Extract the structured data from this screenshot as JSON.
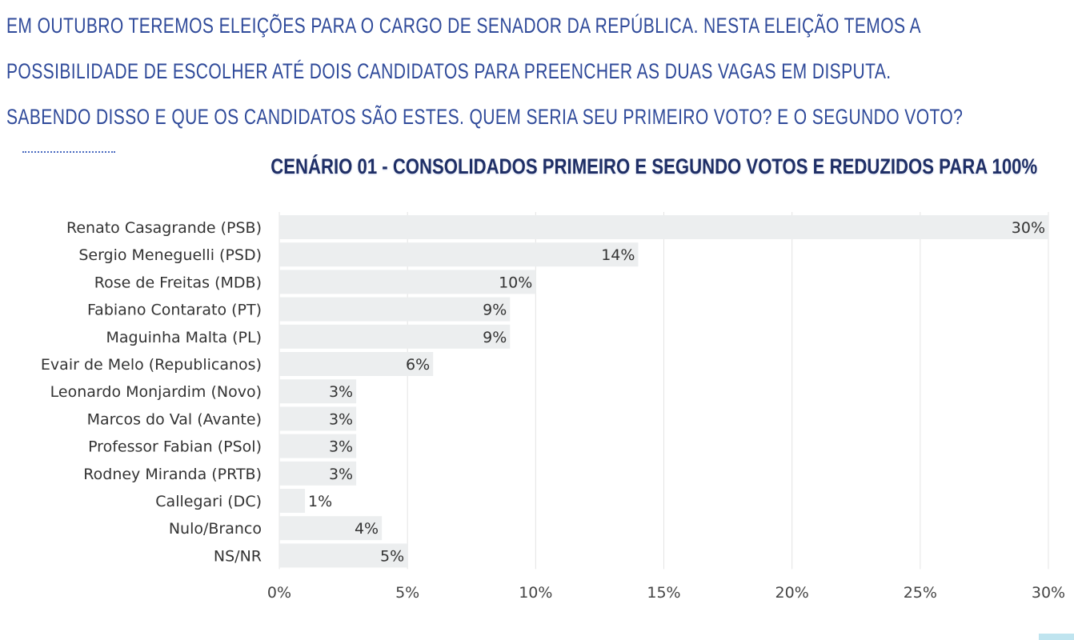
{
  "intro": {
    "line1": "EM OUTUBRO TEREMOS ELEIÇÕES PARA O CARGO DE SENADOR DA REPÚBLICA. NESTA ELEIÇÃO TEMOS A",
    "line2": "POSSIBILIDADE DE ESCOLHER ATÉ DOIS CANDIDATOS PARA PREENCHER AS DUAS VAGAS EM DISPUTA.",
    "line3": "SABENDO DISSO E QUE OS CANDIDATOS SÃO ESTES. QUEM SERIA SEU PRIMEIRO VOTO? E O SEGUNDO VOTO?"
  },
  "colors": {
    "intro_text": "#2f4a9a",
    "title_text": "#1f2f66",
    "bar": "#eceeef",
    "grid": "#e4e4e4",
    "corner_mark": "#bfe4ef"
  },
  "chart_data": {
    "type": "bar",
    "orientation": "horizontal",
    "title": "CENÁRIO 01 - CONSOLIDADOS PRIMEIRO E SEGUNDO VOTOS E REDUZIDOS PARA 100%",
    "categories": [
      "Renato Casagrande (PSB)",
      "Sergio Meneguelli (PSD)",
      "Rose de Freitas (MDB)",
      "Fabiano Contarato (PT)",
      "Maguinha Malta (PL)",
      "Evair de Melo (Republicanos)",
      "Leonardo Monjardim (Novo)",
      "Marcos do Val (Avante)",
      "Professor Fabian (PSol)",
      "Rodney Miranda (PRTB)",
      "Callegari (DC)",
      "Nulo/Branco",
      "NS/NR"
    ],
    "values": [
      30,
      14,
      10,
      9,
      9,
      6,
      3,
      3,
      3,
      3,
      1,
      4,
      5
    ],
    "data_labels": [
      "30%",
      "14%",
      "10%",
      "9%",
      "9%",
      "6%",
      "3%",
      "3%",
      "3%",
      "3%",
      "1%",
      "4%",
      "5%"
    ],
    "xlim": [
      0,
      30
    ],
    "xticks": [
      0,
      5,
      10,
      15,
      20,
      25,
      30
    ],
    "xtick_labels": [
      "0%",
      "5%",
      "10%",
      "15%",
      "20%",
      "25%",
      "30%"
    ],
    "grid": true,
    "legend": "none"
  }
}
